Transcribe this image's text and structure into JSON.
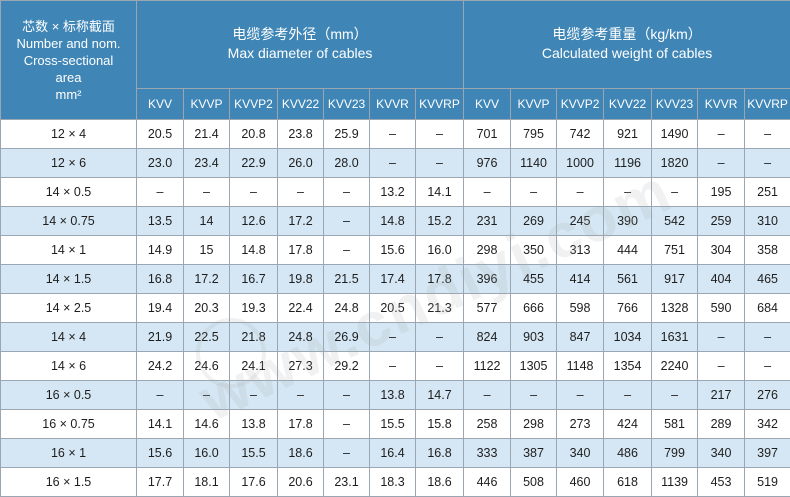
{
  "header": {
    "corner": [
      "芯数 × 标称截面",
      "Number and nom.",
      "Cross-sectional",
      "area",
      "mm²"
    ],
    "diameter_group": [
      "电缆参考外径（mm）",
      "Max diameter of cables"
    ],
    "weight_group": [
      "电缆参考重量（kg/km）",
      "Calculated weight of cables"
    ],
    "diameter_cols": [
      "KVV",
      "KVVP",
      "KVVP2",
      "KVV22",
      "KVV23",
      "KVVR",
      "KVVRP"
    ],
    "weight_cols": [
      "KVV",
      "KVVP",
      "KVVP2",
      "KVV22",
      "KVV23",
      "KVVR",
      "KVVRP"
    ]
  },
  "rows": [
    {
      "spec": "12 × 4",
      "d": [
        "20.5",
        "21.4",
        "20.8",
        "23.8",
        "25.9",
        "–",
        "–"
      ],
      "w": [
        "701",
        "795",
        "742",
        "921",
        "1490",
        "–",
        "–"
      ]
    },
    {
      "spec": "12 × 6",
      "d": [
        "23.0",
        "23.4",
        "22.9",
        "26.0",
        "28.0",
        "–",
        "–"
      ],
      "w": [
        "976",
        "1140",
        "1000",
        "1196",
        "1820",
        "–",
        "–"
      ]
    },
    {
      "spec": "14 × 0.5",
      "d": [
        "–",
        "–",
        "–",
        "–",
        "–",
        "13.2",
        "14.1"
      ],
      "w": [
        "–",
        "–",
        "–",
        "–",
        "–",
        "195",
        "251"
      ]
    },
    {
      "spec": "14 × 0.75",
      "d": [
        "13.5",
        "14",
        "12.6",
        "17.2",
        "–",
        "14.8",
        "15.2"
      ],
      "w": [
        "231",
        "269",
        "245",
        "390",
        "542",
        "259",
        "310"
      ]
    },
    {
      "spec": "14 × 1",
      "d": [
        "14.9",
        "15",
        "14.8",
        "17.8",
        "–",
        "15.6",
        "16.0"
      ],
      "w": [
        "298",
        "350",
        "313",
        "444",
        "751",
        "304",
        "358"
      ]
    },
    {
      "spec": "14 × 1.5",
      "d": [
        "16.8",
        "17.2",
        "16.7",
        "19.8",
        "21.5",
        "17.4",
        "17.8"
      ],
      "w": [
        "396",
        "455",
        "414",
        "561",
        "917",
        "404",
        "465"
      ]
    },
    {
      "spec": "14 × 2.5",
      "d": [
        "19.4",
        "20.3",
        "19.3",
        "22.4",
        "24.8",
        "20.5",
        "21.3"
      ],
      "w": [
        "577",
        "666",
        "598",
        "766",
        "1328",
        "590",
        "684"
      ]
    },
    {
      "spec": "14 × 4",
      "d": [
        "21.9",
        "22.5",
        "21.8",
        "24.8",
        "26.9",
        "–",
        "–"
      ],
      "w": [
        "824",
        "903",
        "847",
        "1034",
        "1631",
        "–",
        "–"
      ]
    },
    {
      "spec": "14 × 6",
      "d": [
        "24.2",
        "24.6",
        "24.1",
        "27.3",
        "29.2",
        "–",
        "–"
      ],
      "w": [
        "1122",
        "1305",
        "1148",
        "1354",
        "2240",
        "–",
        "–"
      ]
    },
    {
      "spec": "16 × 0.5",
      "d": [
        "–",
        "–",
        "–",
        "–",
        "–",
        "13.8",
        "14.7"
      ],
      "w": [
        "–",
        "–",
        "–",
        "–",
        "–",
        "217",
        "276"
      ]
    },
    {
      "spec": "16 × 0.75",
      "d": [
        "14.1",
        "14.6",
        "13.8",
        "17.8",
        "–",
        "15.5",
        "15.8"
      ],
      "w": [
        "258",
        "298",
        "273",
        "424",
        "581",
        "289",
        "342"
      ]
    },
    {
      "spec": "16 × 1",
      "d": [
        "15.6",
        "16.0",
        "15.5",
        "18.6",
        "–",
        "16.4",
        "16.8"
      ],
      "w": [
        "333",
        "387",
        "340",
        "486",
        "799",
        "340",
        "397"
      ]
    },
    {
      "spec": "16 × 1.5",
      "d": [
        "17.7",
        "18.1",
        "17.6",
        "20.6",
        "23.1",
        "18.3",
        "18.6"
      ],
      "w": [
        "446",
        "508",
        "460",
        "618",
        "1139",
        "453",
        "519"
      ]
    }
  ],
  "watermark": "www.cndiyi.com",
  "colors": {
    "header_bg": "#3f86b7",
    "alt_row_bg": "#d5e7f4",
    "border": "#9aa7b3"
  }
}
